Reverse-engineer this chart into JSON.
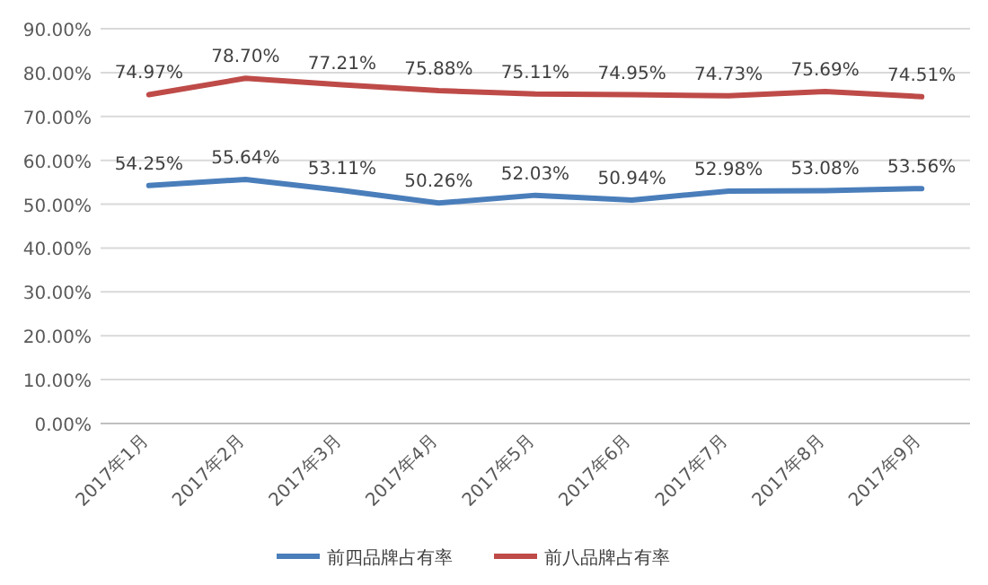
{
  "chart_data": {
    "type": "line",
    "categories": [
      "2017年1月",
      "2017年2月",
      "2017年3月",
      "2017年4月",
      "2017年5月",
      "2017年6月",
      "2017年7月",
      "2017年8月",
      "2017年9月"
    ],
    "series": [
      {
        "name": "前四品牌占有率",
        "color": "#4a7ebb",
        "values": [
          54.25,
          55.64,
          53.11,
          50.26,
          52.03,
          50.94,
          52.98,
          53.08,
          53.56
        ],
        "value_labels": [
          "54.25%",
          "55.64%",
          "53.11%",
          "50.26%",
          "52.03%",
          "50.94%",
          "52.98%",
          "53.08%",
          "53.56%"
        ]
      },
      {
        "name": "前八品牌占有率",
        "color": "#be4b48",
        "values": [
          74.97,
          78.7,
          77.21,
          75.88,
          75.11,
          74.95,
          74.73,
          75.69,
          74.51
        ],
        "value_labels": [
          "74.97%",
          "78.70%",
          "77.21%",
          "75.88%",
          "75.11%",
          "74.95%",
          "74.73%",
          "75.69%",
          "74.51%"
        ]
      }
    ],
    "ylim": [
      0,
      90
    ],
    "yticks": [
      {
        "value": 0,
        "label": "0.00%"
      },
      {
        "value": 10,
        "label": "10.00%"
      },
      {
        "value": 20,
        "label": "20.00%"
      },
      {
        "value": 30,
        "label": "30.00%"
      },
      {
        "value": 40,
        "label": "40.00%"
      },
      {
        "value": 50,
        "label": "50.00%"
      },
      {
        "value": 60,
        "label": "60.00%"
      },
      {
        "value": 70,
        "label": "70.00%"
      },
      {
        "value": 80,
        "label": "80.00%"
      },
      {
        "value": 90,
        "label": "90.00%"
      }
    ],
    "grid": "y",
    "legend": "bottom",
    "marker": "none",
    "line_style": "solid"
  }
}
